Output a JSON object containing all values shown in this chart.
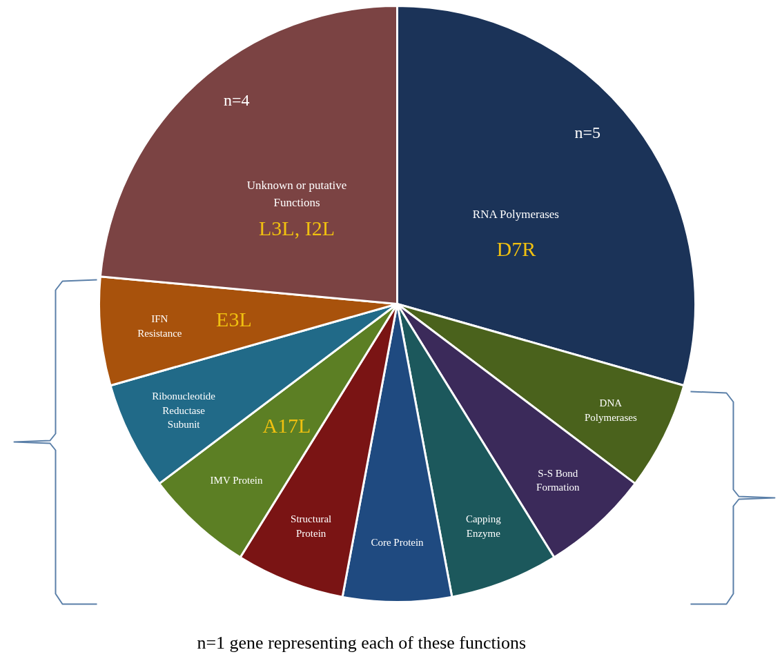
{
  "chart_data": {
    "type": "pie",
    "categories": [
      "RNA Polymerases",
      "DNA Polymerases",
      "S-S Bond Formation",
      "Capping Enzyme",
      "Core Protein",
      "Structural Protein",
      "IMV Protein",
      "Ribonucleotide Reductase Subunit",
      "IFN Resistance",
      "Unknown or putative Functions"
    ],
    "values": [
      5,
      1,
      1,
      1,
      1,
      1,
      1,
      1,
      1,
      4
    ],
    "colors": [
      "#1b3358",
      "#4a621c",
      "#3b2a5a",
      "#1c585c",
      "#1f4a80",
      "#7a1414",
      "#5c7f24",
      "#216a88",
      "#a8520c",
      "#7b4343"
    ],
    "value_labels": [
      "n=5",
      null,
      null,
      null,
      null,
      null,
      null,
      null,
      null,
      "n=4"
    ],
    "annotations": [
      {
        "text": "D7R",
        "x": "RNA Polymerases"
      },
      {
        "text": "E3L",
        "x": "IFN Resistance"
      },
      {
        "text": "A17L",
        "x": "IMV Protein"
      },
      {
        "text": "L3L, I2L",
        "x": "Unknown or putative Functions"
      },
      "n=1 gene representing each of these  functions"
    ]
  }
}
